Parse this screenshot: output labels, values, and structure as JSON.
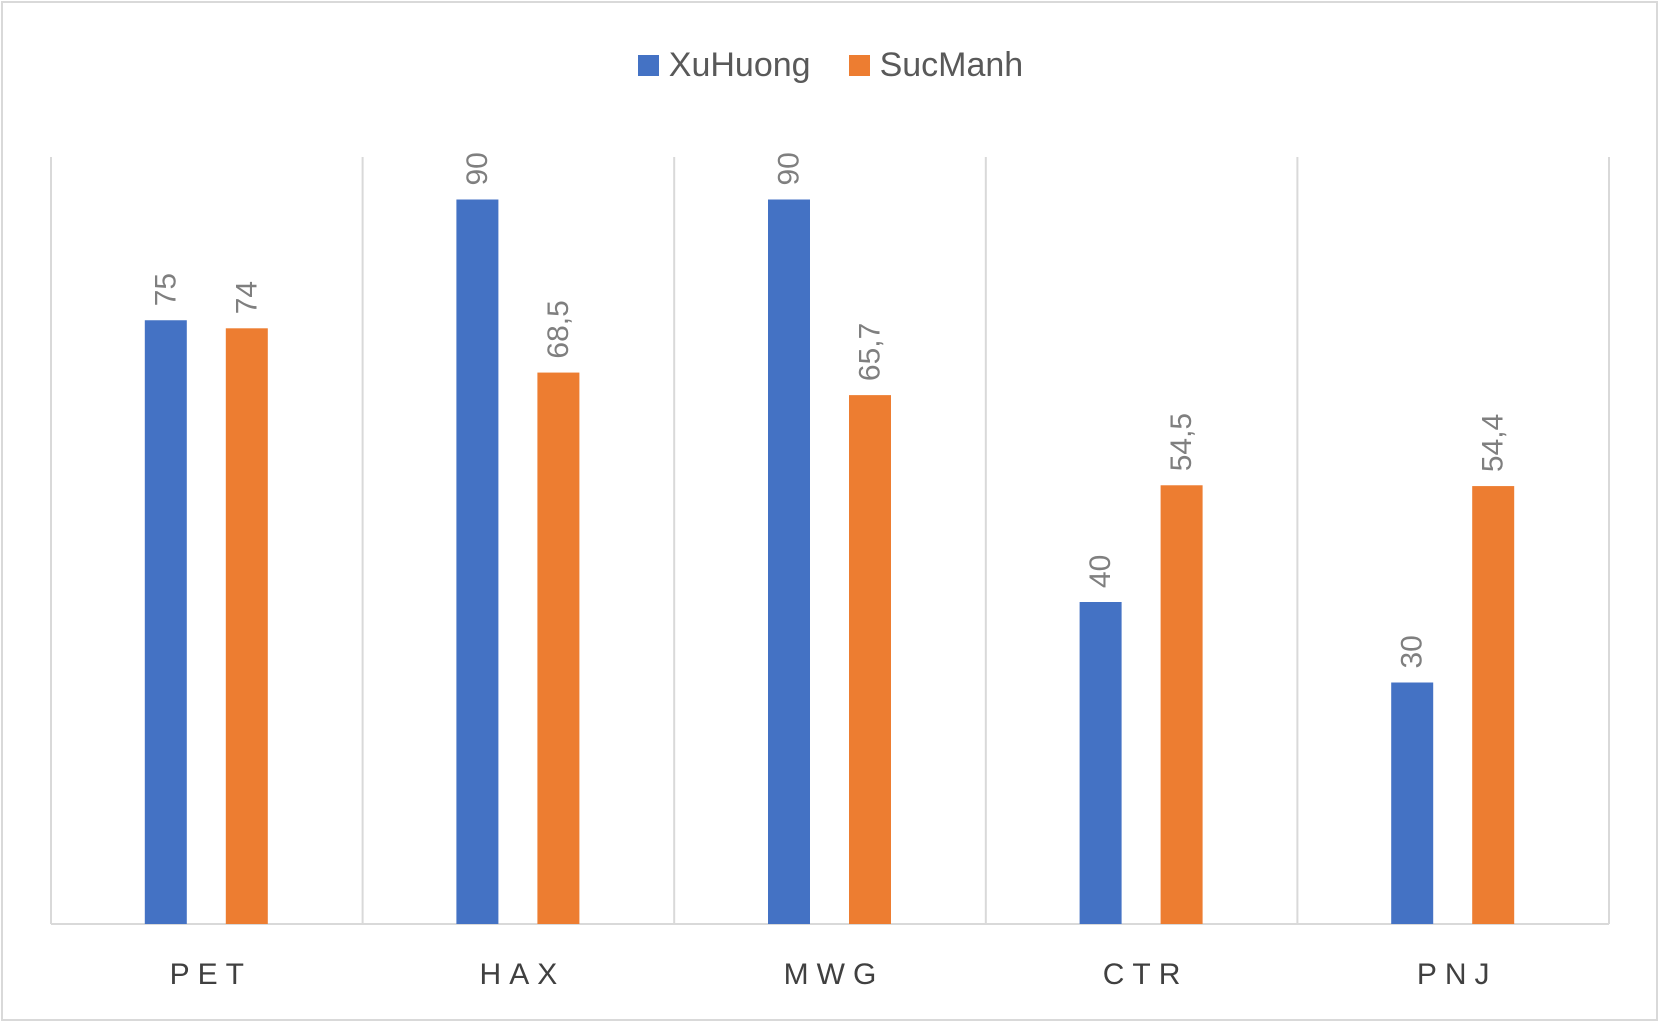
{
  "chart_data": {
    "type": "bar",
    "categories": [
      "PET",
      "HAX",
      "MWG",
      "CTR",
      "PNJ"
    ],
    "series": [
      {
        "name": "XuHuong",
        "color": "#4472c4",
        "values": [
          75,
          90,
          90,
          40,
          30
        ],
        "labels": [
          "75",
          "90",
          "90",
          "40",
          "30"
        ]
      },
      {
        "name": "SucManh",
        "color": "#ed7d31",
        "values": [
          74,
          68.5,
          65.7,
          54.5,
          54.4
        ],
        "labels": [
          "74",
          "68,5",
          "65,7",
          "54,5",
          "54,4"
        ]
      }
    ],
    "ylim": [
      0,
      100
    ],
    "legend_position": "top",
    "gridlines": "vertical-category-separators"
  }
}
